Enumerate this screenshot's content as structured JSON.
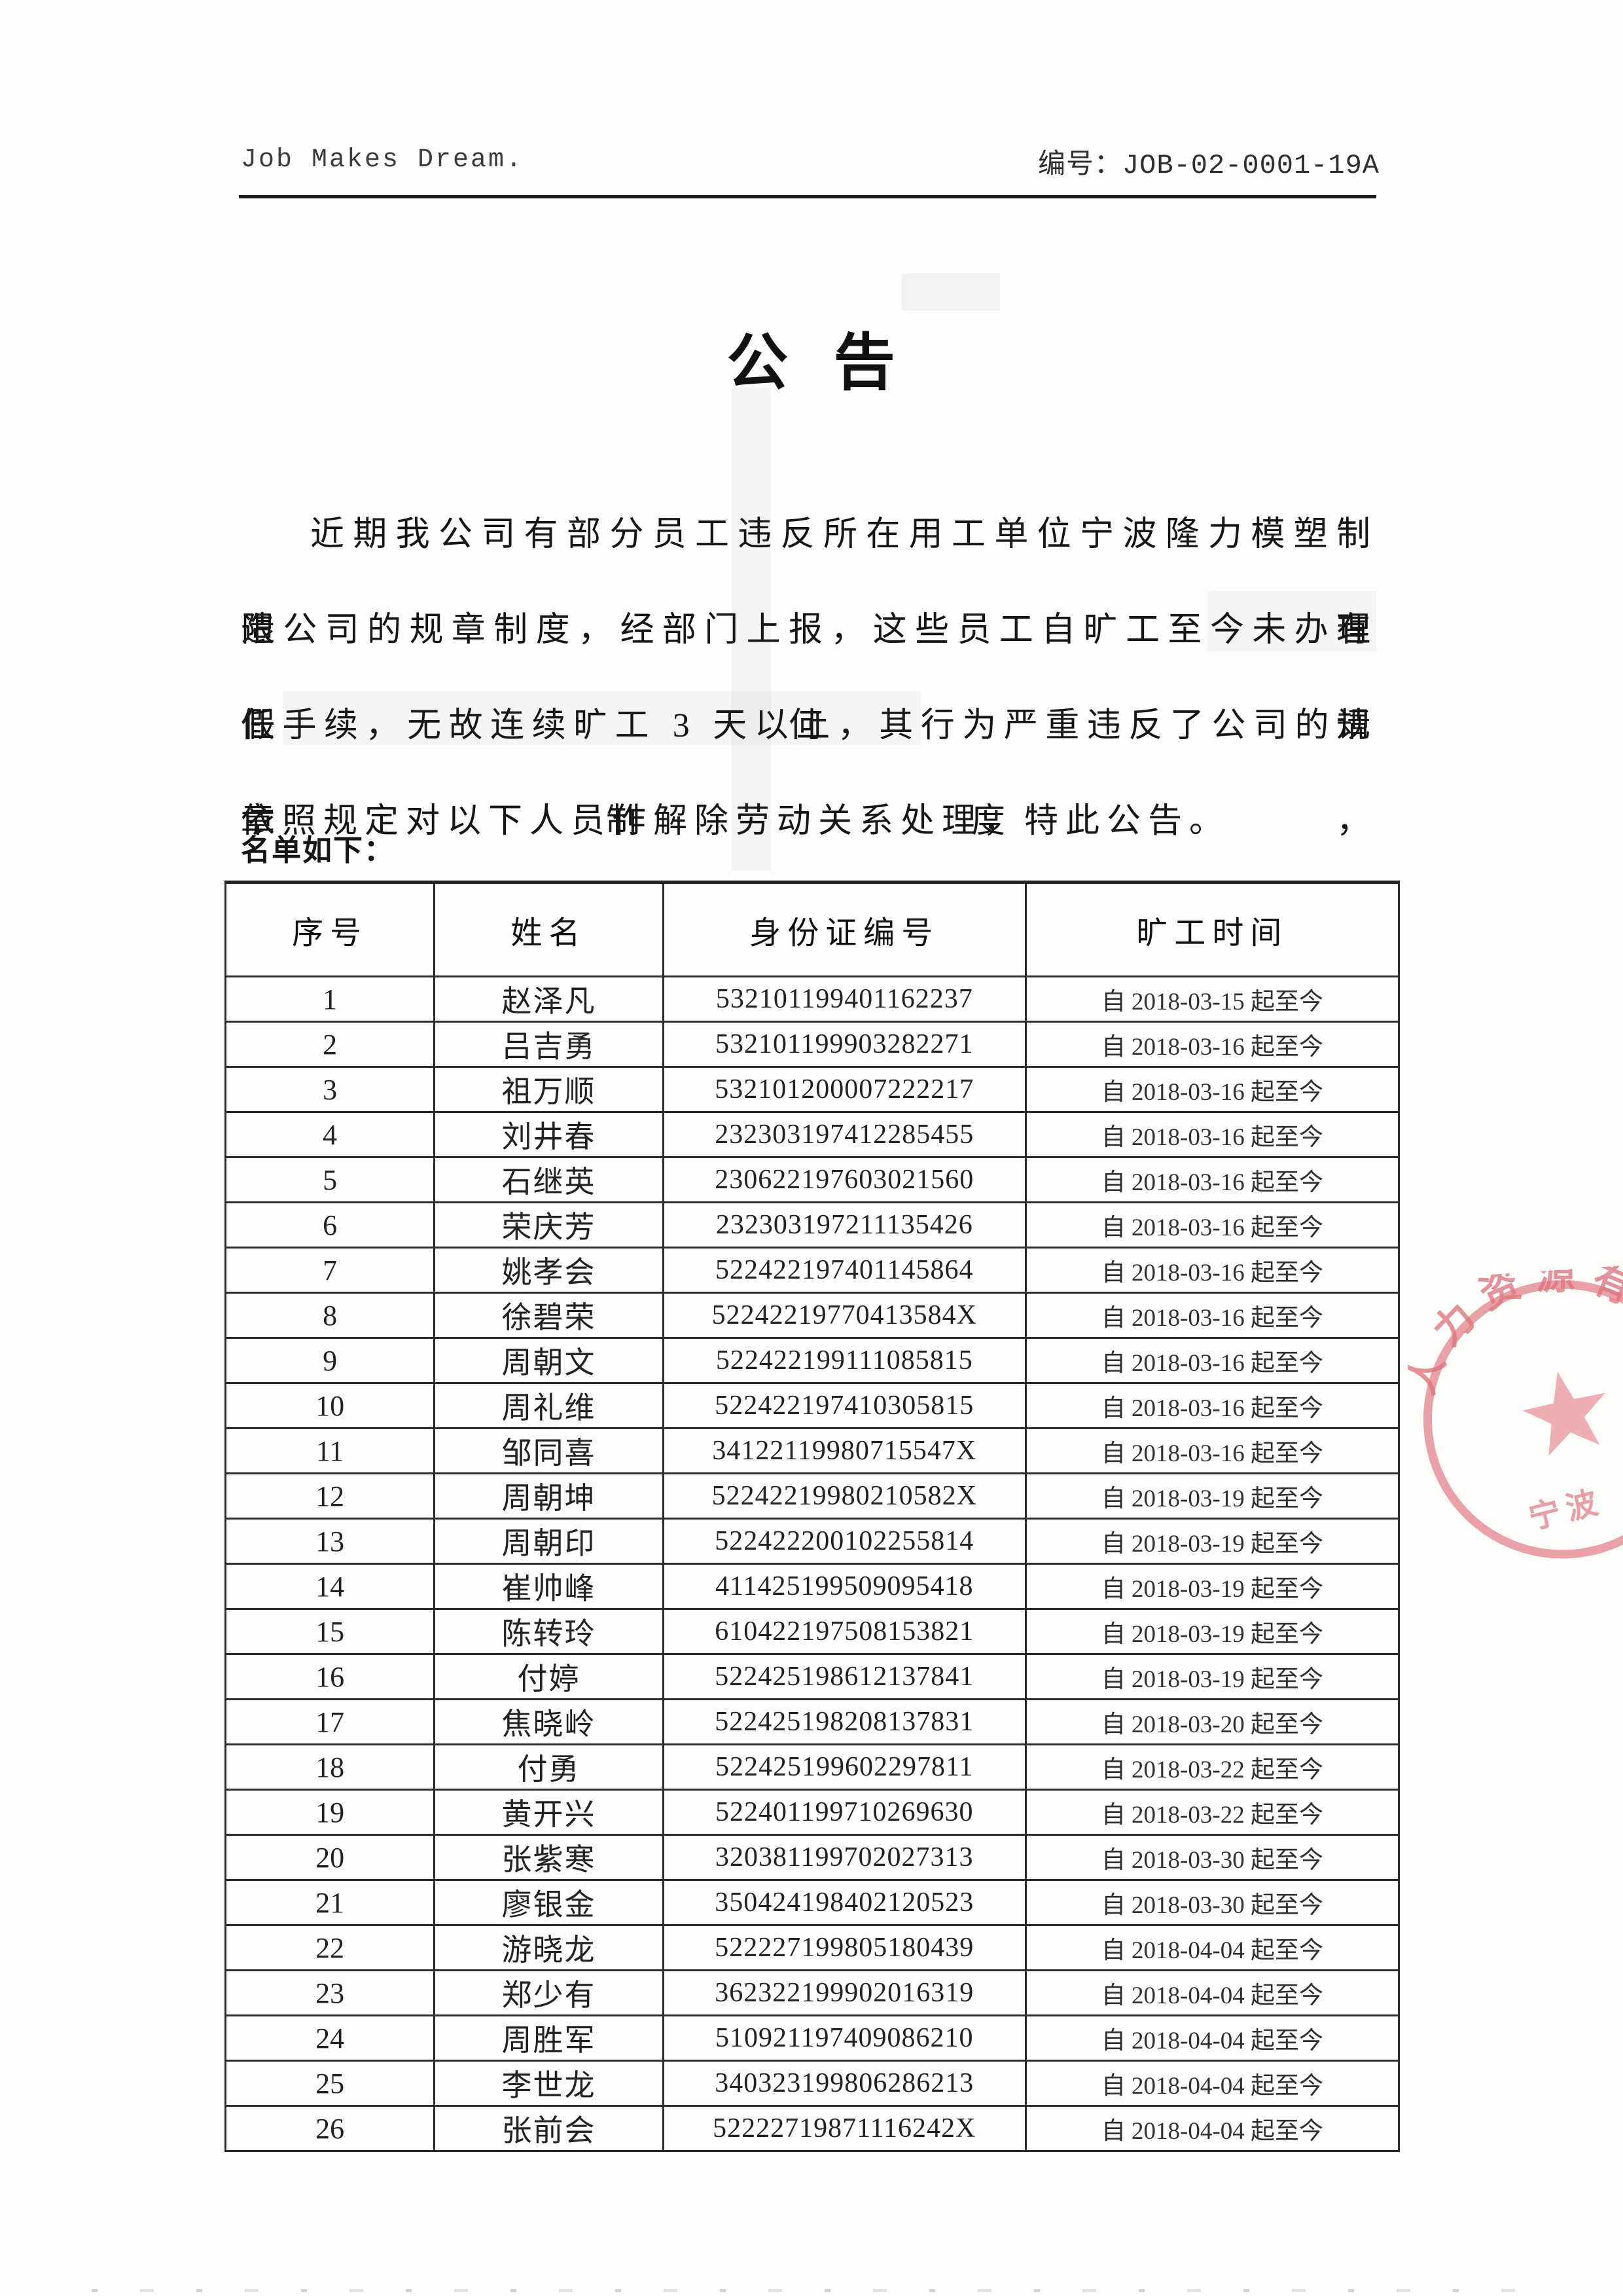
{
  "header": {
    "slogan": "Job Makes Dream.",
    "doc_number": "编号：JOB-02-0001-19A"
  },
  "title": "公 告",
  "paragraph": {
    "line1": "近期我公司有部分员工违反所在用工单位宁波隆力模塑制造有",
    "line2": "限公司的规章制度，经部门上报，这些员工自旷工至今未办理任何请",
    "line3": "假手续，无故连续旷工 3 天以上，其行为严重违反了公司的规章制度，",
    "line4": "依照规定对以下人员作解除劳动关系处理，特此公告。"
  },
  "list_label": "名单如下：",
  "table": {
    "columns": [
      "序号",
      "姓名",
      "身份证编号",
      "旷工时间"
    ],
    "rows": [
      [
        "1",
        "赵泽凡",
        "532101199401162237",
        "自 2018-03-15 起至今"
      ],
      [
        "2",
        "吕吉勇",
        "532101199903282271",
        "自 2018-03-16 起至今"
      ],
      [
        "3",
        "祖万顺",
        "532101200007222217",
        "自 2018-03-16 起至今"
      ],
      [
        "4",
        "刘井春",
        "232303197412285455",
        "自 2018-03-16 起至今"
      ],
      [
        "5",
        "石继英",
        "230622197603021560",
        "自 2018-03-16 起至今"
      ],
      [
        "6",
        "荣庆芳",
        "232303197211135426",
        "自 2018-03-16 起至今"
      ],
      [
        "7",
        "姚孝会",
        "522422197401145864",
        "自 2018-03-16 起至今"
      ],
      [
        "8",
        "徐碧荣",
        "52242219770413584X",
        "自 2018-03-16 起至今"
      ],
      [
        "9",
        "周朝文",
        "522422199111085815",
        "自 2018-03-16 起至今"
      ],
      [
        "10",
        "周礼维",
        "522422197410305815",
        "自 2018-03-16 起至今"
      ],
      [
        "11",
        "邹同喜",
        "34122119980715547X",
        "自 2018-03-16 起至今"
      ],
      [
        "12",
        "周朝坤",
        "52242219980210582X",
        "自 2018-03-19 起至今"
      ],
      [
        "13",
        "周朝印",
        "522422200102255814",
        "自 2018-03-19 起至今"
      ],
      [
        "14",
        "崔帅峰",
        "411425199509095418",
        "自 2018-03-19 起至今"
      ],
      [
        "15",
        "陈转玲",
        "610422197508153821",
        "自 2018-03-19 起至今"
      ],
      [
        "16",
        "付婷",
        "522425198612137841",
        "自 2018-03-19 起至今"
      ],
      [
        "17",
        "焦晓岭",
        "522425198208137831",
        "自 2018-03-20 起至今"
      ],
      [
        "18",
        "付勇",
        "522425199602297811",
        "自 2018-03-22 起至今"
      ],
      [
        "19",
        "黄开兴",
        "522401199710269630",
        "自 2018-03-22 起至今"
      ],
      [
        "20",
        "张紫寒",
        "320381199702027313",
        "自 2018-03-30 起至今"
      ],
      [
        "21",
        "廖银金",
        "350424198402120523",
        "自 2018-03-30 起至今"
      ],
      [
        "22",
        "游晓龙",
        "522227199805180439",
        "自 2018-04-04 起至今"
      ],
      [
        "23",
        "郑少有",
        "362322199902016319",
        "自 2018-04-04 起至今"
      ],
      [
        "24",
        "周胜军",
        "510921197409086210",
        "自 2018-04-04 起至今"
      ],
      [
        "25",
        "李世龙",
        "340323199806286213",
        "自 2018-04-04 起至今"
      ],
      [
        "26",
        "张前会",
        "52222719871116242X",
        "自 2018-04-04 起至今"
      ]
    ]
  },
  "seal": {
    "arc_text": "人力资源有",
    "bottom_text": "宁波",
    "color": "#d95c63"
  }
}
